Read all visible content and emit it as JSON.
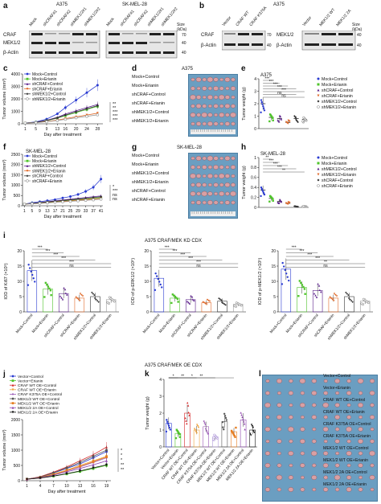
{
  "panels": {
    "a": {
      "label": "a",
      "cell_lines": [
        "A375",
        "SK-MEL-28"
      ],
      "lanes": [
        "Mock",
        "shCRAF#1",
        "shCRAF#2",
        "shMEK1/2#1",
        "shMEK1/2#2"
      ],
      "lanes_sk": [
        "Mock",
        "shCRAF#1",
        "shCRAF#2",
        "shMEK1/2#1",
        "shMEK1/2#2"
      ],
      "rows": [
        "CRAF",
        "MEK1/2",
        "β-Actin"
      ],
      "size_header": "Size (kDa)",
      "sizes": [
        "70",
        "40",
        "40"
      ]
    },
    "b": {
      "label": "b",
      "cell_line": "A375",
      "lanes_left": [
        "Vector",
        "CRAF WT",
        "CRAF K375A"
      ],
      "lanes_right": [
        "Vector",
        "MEK1/2 WT",
        "MEK1/2 2A"
      ],
      "rows_left": [
        "CRAF",
        "β-Actin"
      ],
      "rows_right": [
        "MEK1/2",
        "β-Actin"
      ],
      "sizes_left": [
        "70",
        "40"
      ],
      "sizes_right": [
        "40",
        "40"
      ],
      "size_header": "Size (kDa)"
    },
    "c": {
      "label": "c"
    },
    "d": {
      "label": "d",
      "title": "A375",
      "rows": [
        "Mock+Control",
        "Mock+Erianin",
        "shCRAF+Control",
        "shCRAF+Erianin",
        "shMEK1/2+Control",
        "shMEK1/2+Erianin"
      ]
    },
    "e": {
      "label": "e"
    },
    "f": {
      "label": "f"
    },
    "g": {
      "label": "g",
      "title": "SK-MEL-28",
      "rows": [
        "Mock+Control",
        "Mock+Erianin",
        "shMEK1/2+Control",
        "shMEK1/2+Erianin",
        "shCRAF+Control",
        "shCRAF+Erianin"
      ]
    },
    "h": {
      "label": "h"
    },
    "i": {
      "label": "i",
      "header": "A375  CRAF/MEK KD CDX"
    },
    "j": {
      "label": "j",
      "header": "A375  CRAF/MEK OE CDX"
    },
    "k": {
      "label": "k"
    },
    "l": {
      "label": "l",
      "rows": [
        "Vector+Control",
        "Vector+Erianin",
        "CRAF WT OE+Control",
        "CRAF WT OE+Erianin",
        "CRAF K375A OE+Control",
        "CRAF K375A OE+Erianin",
        "MEK1/2 WT OE+Control",
        "MEK1/2 WT OE+Erianin",
        "MEK1/2 2A OE+Control",
        "MEK1/2 2A OE+Erianin"
      ]
    }
  },
  "chart_data": [
    {
      "panel": "c",
      "type": "line",
      "title": "A375",
      "xlabel": "Day after treatment",
      "ylabel": "Tumor volume (mm³)",
      "x": [
        1,
        5,
        9,
        13,
        16,
        20,
        24,
        28
      ],
      "xlim": [
        0,
        30
      ],
      "ylim": [
        0,
        4000
      ],
      "yticks": [
        0,
        1000,
        2000,
        3000,
        4000
      ],
      "series": [
        {
          "name": "Mock+Control",
          "color": "#2a3bd1",
          "marker": "circle",
          "values": [
            60,
            150,
            380,
            800,
            1300,
            1900,
            2500,
            3100
          ]
        },
        {
          "name": "Mock+Erianin",
          "color": "#4fc42b",
          "marker": "square",
          "values": [
            60,
            120,
            250,
            450,
            650,
            900,
            1150,
            1400
          ]
        },
        {
          "name": "shCRAF+Control",
          "color": "#5a1f8a",
          "marker": "triangle",
          "values": [
            60,
            130,
            280,
            520,
            780,
            1050,
            1300,
            1550
          ]
        },
        {
          "name": "shCRAF+Erianin",
          "color": "#e06a2a",
          "marker": "triangle-down",
          "values": [
            60,
            100,
            180,
            300,
            420,
            560,
            700,
            850
          ]
        },
        {
          "name": "shMEK1/2+Control",
          "color": "#333333",
          "marker": "diamond",
          "values": [
            60,
            120,
            260,
            480,
            700,
            950,
            1200,
            1450
          ]
        },
        {
          "name": "shMEK1/2+Erianin",
          "color": "#999999",
          "marker": "circle-open",
          "values": [
            60,
            90,
            160,
            260,
            360,
            480,
            600,
            720
          ]
        }
      ],
      "annotations": [
        "**",
        "**",
        "***",
        "***",
        "***"
      ]
    },
    {
      "panel": "e",
      "type": "scatter",
      "title": "A375",
      "ylabel": "Tumor weight (g)",
      "ylim": [
        0,
        4
      ],
      "yticks": [
        0,
        1,
        2,
        3,
        4
      ],
      "categories": [
        "Mock+Control",
        "Mock+Erianin",
        "shCRAF+Control",
        "shCRAF+Erianin",
        "shMEK1/2+Control",
        "shMEK1/2+Erianin"
      ],
      "colors": [
        "#2a3bd1",
        "#4fc42b",
        "#5a1f8a",
        "#e06a2a",
        "#333333",
        "#999999"
      ],
      "values": [
        2.0,
        0.9,
        0.8,
        0.5,
        0.8,
        0.75
      ],
      "annotations": [
        "***",
        "***",
        "***",
        "***",
        "***",
        "ns",
        "ns"
      ]
    },
    {
      "panel": "f",
      "type": "line",
      "title": "SK-MEL-28",
      "xlabel": "Day after treatment",
      "ylabel": "Tumor volume (mm³)",
      "x": [
        1,
        5,
        9,
        13,
        17,
        21,
        25,
        29,
        33,
        37,
        41
      ],
      "xlim": [
        0,
        42
      ],
      "ylim": [
        0,
        2500
      ],
      "yticks": [
        0,
        500,
        1000,
        1500,
        2000,
        2500
      ],
      "series": [
        {
          "name": "Mock+Control",
          "color": "#2a3bd1",
          "marker": "circle",
          "values": [
            80,
            150,
            200,
            250,
            300,
            380,
            450,
            550,
            700,
            900,
            1300
          ]
        },
        {
          "name": "Mock+Erianin",
          "color": "#4fc42b",
          "marker": "square",
          "values": [
            80,
            110,
            140,
            170,
            200,
            230,
            260,
            290,
            320,
            360,
            400
          ]
        },
        {
          "name": "shMEK1/2+Control",
          "color": "#5a1f8a",
          "marker": "triangle",
          "values": [
            80,
            120,
            160,
            200,
            240,
            280,
            320,
            360,
            400,
            440,
            480
          ]
        },
        {
          "name": "shMEK1/2+Erianin",
          "color": "#e06a2a",
          "marker": "triangle-down",
          "values": [
            80,
            100,
            120,
            150,
            180,
            210,
            240,
            270,
            300,
            330,
            360
          ]
        },
        {
          "name": "shCRAF+Control",
          "color": "#333333",
          "marker": "diamond",
          "values": [
            80,
            115,
            150,
            185,
            220,
            255,
            290,
            325,
            360,
            400,
            440
          ]
        },
        {
          "name": "shCRAF+Erianin",
          "color": "#999999",
          "marker": "circle-open",
          "values": [
            80,
            95,
            115,
            140,
            165,
            190,
            215,
            240,
            265,
            290,
            320
          ]
        }
      ],
      "annotations": [
        "*",
        "***",
        "ns",
        "ns"
      ]
    },
    {
      "panel": "h",
      "type": "scatter",
      "title": "SK-MEL-28",
      "ylabel": "Tumor weight (g)",
      "ylim": [
        0,
        1.0
      ],
      "yticks": [
        0,
        0.2,
        0.4,
        0.6,
        0.8,
        1.0
      ],
      "categories": [
        "Mock+Control",
        "Mock+Erianin",
        "shMEK1/2+Control",
        "shMEK1/2+Erianin",
        "shCRAF+Control",
        "shCRAF+Erianin"
      ],
      "colors": [
        "#2a3bd1",
        "#4fc42b",
        "#5a1f8a",
        "#e06a2a",
        "#333333",
        "#999999"
      ],
      "values": [
        0.35,
        0.18,
        0.12,
        0.08,
        0.02,
        0.02
      ],
      "annotations": [
        "**",
        "***",
        "***",
        "***",
        "**"
      ]
    },
    {
      "panel": "i1",
      "type": "scatter",
      "ylabel": "IOD of Ki67 (×10⁵)",
      "ylim": [
        0,
        20
      ],
      "yticks": [
        0,
        5,
        10,
        15,
        20
      ],
      "categories": [
        "Mock+Control",
        "Mock+Erianin",
        "shCRAF+Control",
        "shCRAF+Erianin",
        "shMEK1/2+Control",
        "shMEK1/2+Erianin"
      ],
      "colors": [
        "#2a3bd1",
        "#4fc42b",
        "#5a1f8a",
        "#e06a2a",
        "#333333",
        "#999999"
      ],
      "values": [
        13.5,
        7.5,
        6.0,
        4.5,
        5.0,
        4.0
      ],
      "annotations": [
        "***",
        "***",
        "***",
        "***",
        "***",
        "ns"
      ]
    },
    {
      "panel": "i2",
      "type": "scatter",
      "ylabel": "IOD of p-ERK1/2 (×10⁵)",
      "ylim": [
        0,
        20
      ],
      "yticks": [
        0,
        5,
        10,
        15,
        20
      ],
      "categories": [
        "Mock+Control",
        "Mock+Erianin",
        "shCRAF+Control",
        "shCRAF+Erianin",
        "shMEK1/2+Control",
        "shMEK1/2+Erianin"
      ],
      "colors": [
        "#2a3bd1",
        "#4fc42b",
        "#5a1f8a",
        "#e06a2a",
        "#333333",
        "#999999"
      ],
      "values": [
        11.0,
        4.5,
        4.0,
        3.0,
        3.5,
        2.5
      ],
      "annotations": [
        "***",
        "***",
        "***",
        "***",
        "***",
        "ns"
      ]
    },
    {
      "panel": "i3",
      "type": "scatter",
      "ylabel": "IOD of p-MEK1/2 (×10⁵)",
      "ylim": [
        0,
        20
      ],
      "yticks": [
        0,
        5,
        10,
        15,
        20
      ],
      "categories": [
        "Mock+Control",
        "Mock+Erianin",
        "shCRAF+Control",
        "shCRAF+Erianin",
        "shMEK1/2+Control",
        "shMEK1/2+Erianin"
      ],
      "colors": [
        "#2a3bd1",
        "#4fc42b",
        "#5a1f8a",
        "#e06a2a",
        "#333333",
        "#999999"
      ],
      "values": [
        14.0,
        8.0,
        7.0,
        4.5,
        5.0,
        3.5
      ],
      "annotations": [
        "***",
        "***",
        "***",
        "***",
        "**",
        "ns"
      ]
    },
    {
      "panel": "j",
      "type": "line",
      "xlabel": "Day after treatment",
      "ylabel": "Tumor volume (mm³)",
      "x": [
        1,
        4,
        7,
        10,
        13,
        16,
        19
      ],
      "xlim": [
        0,
        20
      ],
      "ylim": [
        0,
        2000
      ],
      "yticks": [
        0,
        500,
        1000,
        1500,
        2000
      ],
      "series": [
        {
          "name": "Vector+Control",
          "color": "#2a3bd1",
          "marker": "circle",
          "values": [
            50,
            120,
            250,
            400,
            550,
            750,
            950
          ]
        },
        {
          "name": "Vector+Erianin",
          "color": "#4fc42b",
          "marker": "square",
          "values": [
            50,
            90,
            150,
            220,
            300,
            400,
            500
          ]
        },
        {
          "name": "CRAF WT OE+Control",
          "color": "#d62728",
          "marker": "triangle",
          "values": [
            50,
            130,
            280,
            450,
            650,
            850,
            1100
          ]
        },
        {
          "name": "CRAF WT OE+Erianin",
          "color": "#f0a23a",
          "marker": "triangle-down",
          "values": [
            50,
            110,
            220,
            350,
            500,
            650,
            800
          ]
        },
        {
          "name": "CRAF K375A OE+Control",
          "color": "#9b59b6",
          "marker": "diamond",
          "values": [
            50,
            100,
            200,
            320,
            450,
            600,
            750
          ]
        },
        {
          "name": "MEK1/2 WT OE+Control",
          "color": "#555555",
          "marker": "circle",
          "values": [
            50,
            120,
            260,
            420,
            600,
            800,
            1000
          ]
        },
        {
          "name": "MEK1/2 WT OE+Erianin",
          "color": "#e67e22",
          "marker": "square",
          "values": [
            50,
            100,
            200,
            330,
            470,
            620,
            780
          ]
        },
        {
          "name": "MEK1/2 2A OE+Control",
          "color": "#8e44ad",
          "marker": "triangle",
          "values": [
            50,
            95,
            180,
            290,
            400,
            520,
            650
          ]
        },
        {
          "name": "MEK1/2 2A OE+Erianin",
          "color": "#111111",
          "marker": "triangle-down",
          "values": [
            50,
            85,
            150,
            230,
            320,
            420,
            520
          ]
        }
      ],
      "annotations": [
        "*",
        "*",
        "*",
        "**",
        "**"
      ]
    },
    {
      "panel": "k",
      "type": "scatter",
      "ylabel": "Tumor weight (g)",
      "ylim": [
        0,
        4
      ],
      "yticks": [
        0,
        1,
        2,
        3,
        4
      ],
      "categories": [
        "Vector+Control",
        "Vector+Erianin",
        "CRAF WT OE+Control",
        "CRAF WT OE+Erianin",
        "CRAF K375A OE+Control",
        "CRAF K375A OE+Erianin",
        "MEK1/2 WT OE+Control",
        "MEK1/2 WT OE+Erianin",
        "MEK1/2 2A OE+Control",
        "MEK1/2 2A OE+Erianin"
      ],
      "colors": [
        "#2a3bd1",
        "#4fc42b",
        "#d62728",
        "#f0a23a",
        "#9b59b6",
        "#b39ddb",
        "#555555",
        "#e67e22",
        "#8e44ad",
        "#111111"
      ],
      "values": [
        1.4,
        0.8,
        2.0,
        1.0,
        1.2,
        0.6,
        1.5,
        0.9,
        1.6,
        1.0
      ],
      "annotations": [
        "*",
        "**",
        "*",
        "**"
      ]
    }
  ]
}
